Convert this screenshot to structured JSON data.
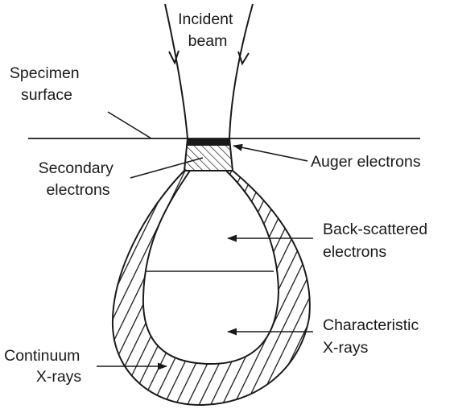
{
  "labels": {
    "incident_beam": [
      "Incident",
      "beam"
    ],
    "specimen_surface": [
      "Specimen",
      "surface"
    ],
    "secondary_electrons": [
      "Secondary",
      "electrons"
    ],
    "auger_electrons": "Auger electrons",
    "back_scattered_electrons": [
      "Back-scattered",
      "electrons"
    ],
    "characteristic_xrays": [
      "Characteristic",
      "X-rays"
    ],
    "continuum_xrays": [
      "Continuum",
      "X-rays"
    ]
  },
  "colors": {
    "ink": "#1a1a1a",
    "background": "#ffffff"
  }
}
